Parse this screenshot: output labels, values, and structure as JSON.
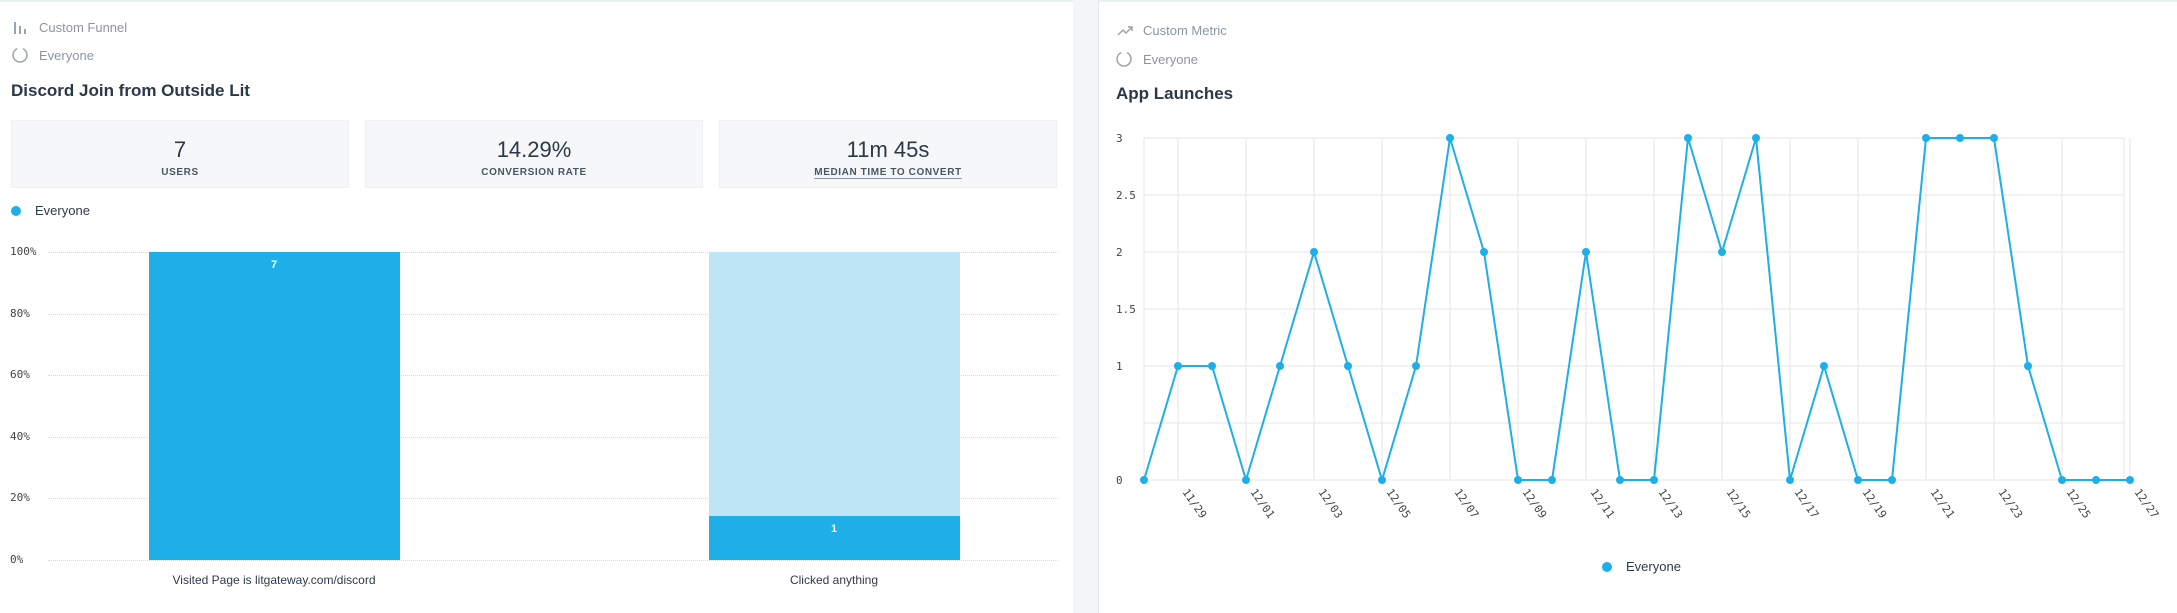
{
  "funnel": {
    "type_label": "Custom Funnel",
    "segment_label": "Everyone",
    "title": "Discord Join from Outside Lit",
    "stats": [
      {
        "value": "7",
        "label": "USERS"
      },
      {
        "value": "14.29%",
        "label": "CONVERSION RATE"
      },
      {
        "value": "11m 45s",
        "label": "MEDIAN TIME TO CONVERT"
      }
    ],
    "legend": "Everyone",
    "y_ticks": [
      "100%",
      "80%",
      "60%",
      "40%",
      "20%",
      "0%"
    ],
    "steps": [
      {
        "label": "Visited Page is litgateway.com/discord",
        "count": "7",
        "percent": 100
      },
      {
        "label": "Clicked anything",
        "count": "1",
        "percent": 14.29
      }
    ],
    "colors": {
      "bar": "#1eaee8",
      "bar_bg": "#bde5f6"
    }
  },
  "metric": {
    "type_label": "Custom Metric",
    "segment_label": "Everyone",
    "title": "App Launches",
    "legend": "Everyone",
    "chart_data": {
      "type": "line",
      "title": "App Launches",
      "xlabel": "",
      "ylabel": "",
      "y_ticks": [
        "3",
        "2.5",
        "2",
        "1.5",
        "1",
        "0"
      ],
      "ylim": [
        0,
        3
      ],
      "x_tick_labels": [
        "11/29",
        "12/01",
        "12/03",
        "12/05",
        "12/07",
        "12/09",
        "12/11",
        "12/13",
        "12/15",
        "12/17",
        "12/19",
        "12/21",
        "12/23",
        "12/25",
        "12/27"
      ],
      "x": [
        "11/28",
        "11/29",
        "11/30",
        "12/01",
        "12/02",
        "12/03",
        "12/04",
        "12/05",
        "12/06",
        "12/07",
        "12/08",
        "12/09",
        "12/10",
        "12/11",
        "12/12",
        "12/13",
        "12/14",
        "12/15",
        "12/16",
        "12/17",
        "12/18",
        "12/19",
        "12/20",
        "12/21",
        "12/22",
        "12/23",
        "12/24",
        "12/25",
        "12/26",
        "12/27"
      ],
      "series": [
        {
          "name": "Everyone",
          "values": [
            0,
            1,
            1,
            0,
            1,
            2,
            1,
            0,
            1,
            3,
            2,
            0,
            0,
            2,
            0,
            0,
            3,
            2,
            3,
            0,
            1,
            0,
            0,
            3,
            3,
            3,
            1,
            0,
            0,
            0
          ]
        }
      ],
      "grid": true,
      "legend_position": "bottom",
      "color": "#1eaee8"
    }
  }
}
